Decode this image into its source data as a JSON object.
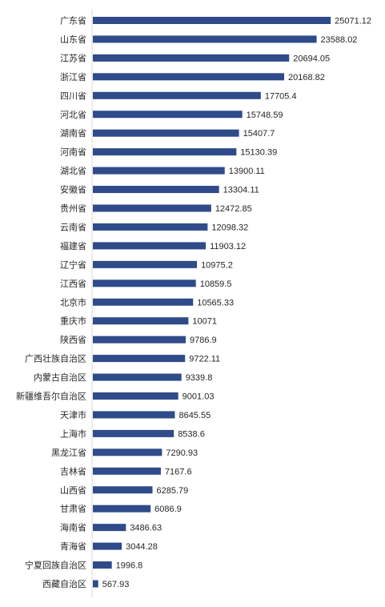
{
  "chart_data": {
    "type": "bar",
    "orientation": "horizontal",
    "title": "",
    "xlabel": "",
    "ylabel": "",
    "grid": false,
    "legend": "none",
    "bar_color": "#2f4b8a",
    "xlim": [
      0,
      27000
    ],
    "categories": [
      "广东省",
      "山东省",
      "江苏省",
      "浙江省",
      "四川省",
      "河北省",
      "湖南省",
      "河南省",
      "湖北省",
      "安徽省",
      "贵州省",
      "云南省",
      "福建省",
      "辽宁省",
      "江西省",
      "北京市",
      "重庆市",
      "陕西省",
      "广西壮族自治区",
      "内蒙古自治区",
      "新疆维吾尔自治区",
      "天津市",
      "上海市",
      "黑龙江省",
      "吉林省",
      "山西省",
      "甘肃省",
      "海南省",
      "青海省",
      "宁夏回族自治区",
      "西藏自治区"
    ],
    "values": [
      25071.12,
      23588.02,
      20694.05,
      20168.82,
      17705.4,
      15748.59,
      15407.7,
      15130.39,
      13900.11,
      13304.11,
      12472.85,
      12098.32,
      11903.12,
      10975.2,
      10859.5,
      10565.33,
      10071,
      9786.9,
      9722.11,
      9339.8,
      9001.03,
      8645.55,
      8538.6,
      7290.93,
      7167.6,
      6285.79,
      6086.9,
      3486.63,
      3044.28,
      1996.8,
      567.93
    ],
    "value_labels": [
      "25071.12",
      "23588.02",
      "20694.05",
      "20168.82",
      "17705.4",
      "15748.59",
      "15407.7",
      "15130.39",
      "13900.11",
      "13304.11",
      "12472.85",
      "12098.32",
      "11903.12",
      "10975.2",
      "10859.5",
      "10565.33",
      "10071",
      "9786.9",
      "9722.11",
      "9339.8",
      "9001.03",
      "8645.55",
      "8538.6",
      "7290.93",
      "7167.6",
      "6285.79",
      "6086.9",
      "3486.63",
      "3044.28",
      "1996.8",
      "567.93"
    ]
  }
}
